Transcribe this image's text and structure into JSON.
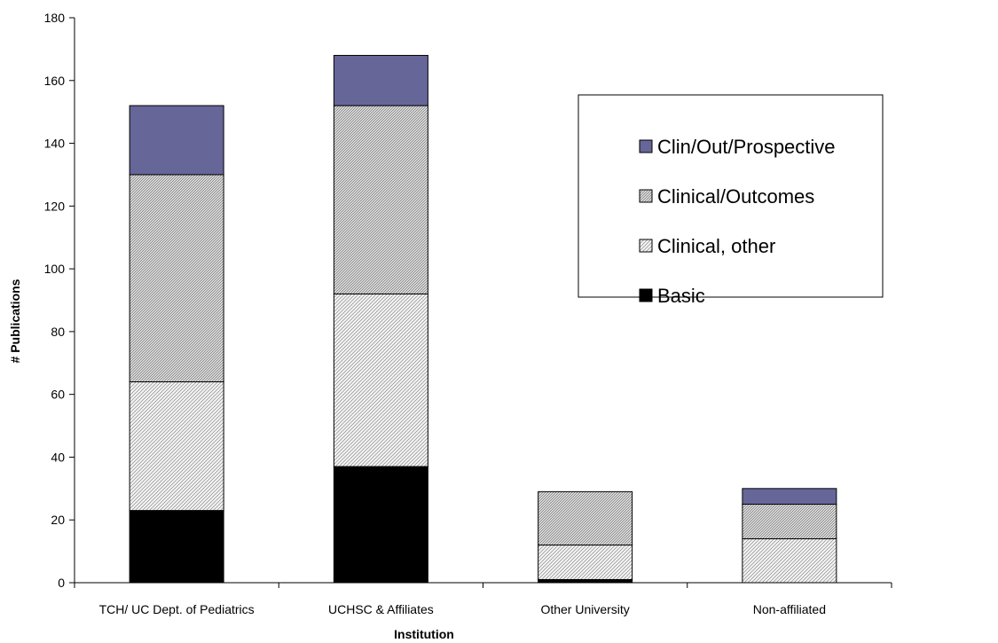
{
  "chart_data": {
    "type": "bar",
    "stacked": true,
    "title": "",
    "xlabel": "Institution",
    "ylabel": "# Publications",
    "ylim": [
      0,
      180
    ],
    "yticks": [
      0,
      20,
      40,
      60,
      80,
      100,
      120,
      140,
      160,
      180
    ],
    "grid": false,
    "legend_position": "right",
    "categories": [
      "TCH/ UC Dept. of Pediatrics",
      "UCHSC & Affiliates",
      "Other University",
      "Non-affiliated"
    ],
    "series": [
      {
        "name": "Basic",
        "values": [
          23,
          37,
          1,
          0
        ],
        "color": "#000000",
        "pattern": "solid"
      },
      {
        "name": "Clinical, other",
        "values": [
          41,
          55,
          11,
          14
        ],
        "color": "#d8d8d8",
        "pattern": "hatch-light"
      },
      {
        "name": "Clinical/Outcomes",
        "values": [
          66,
          60,
          17,
          11
        ],
        "color": "#c8c8c8",
        "pattern": "hatch-dense"
      },
      {
        "name": "Clin/Out/Prospective",
        "values": [
          22,
          16,
          0,
          5
        ],
        "color": "#666699",
        "pattern": "solid"
      }
    ],
    "legend_order": [
      "Clin/Out/Prospective",
      "Clinical/Outcomes",
      "Clinical, other",
      "Basic"
    ]
  }
}
